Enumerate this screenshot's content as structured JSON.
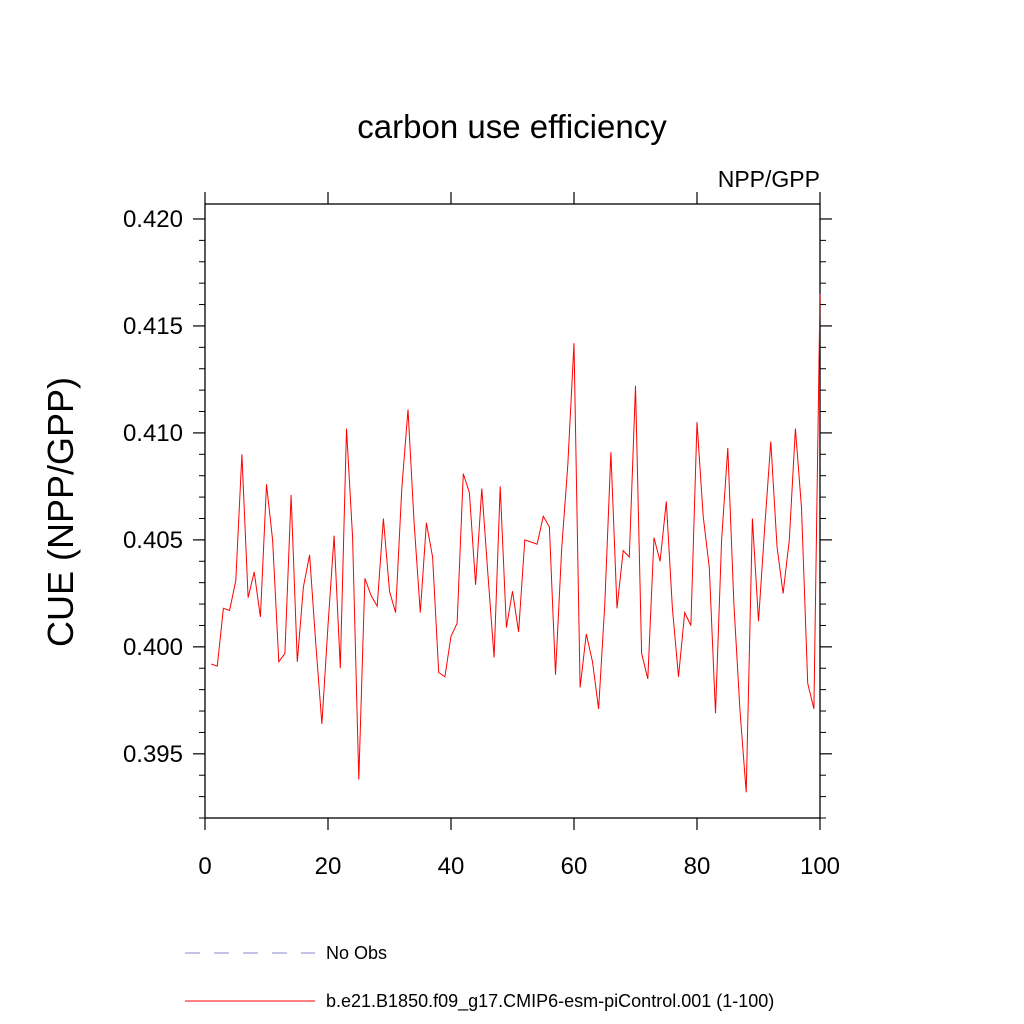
{
  "chart_data": {
    "type": "line",
    "title": "carbon use efficiency",
    "subtitle_right": "NPP/GPP",
    "xlabel": "",
    "ylabel": "CUE  (NPP/GPP)",
    "xlim": [
      0,
      100
    ],
    "ylim": [
      0.392,
      0.4207
    ],
    "xticks": [
      0,
      20,
      40,
      60,
      80,
      100
    ],
    "yticks": [
      0.395,
      0.4,
      0.405,
      0.41,
      0.415,
      0.42
    ],
    "ytick_labels": [
      "0.395",
      "0.400",
      "0.405",
      "0.410",
      "0.415",
      "0.420"
    ],
    "xtick_labels": [
      "0",
      "20",
      "40",
      "60",
      "80",
      "100"
    ],
    "grid": false,
    "legend_position": "bottom-left",
    "series": [
      {
        "name": "No Obs",
        "color": "#8a8ad6",
        "style": "dashed",
        "values": []
      },
      {
        "name": "b.e21.B1850.f09_g17.CMIP6-esm-piControl.001 (1-100)",
        "color": "#ff0000",
        "style": "solid",
        "x": [
          1,
          2,
          3,
          4,
          5,
          6,
          7,
          8,
          9,
          10,
          11,
          12,
          13,
          14,
          15,
          16,
          17,
          18,
          19,
          20,
          21,
          22,
          23,
          24,
          25,
          26,
          27,
          28,
          29,
          30,
          31,
          32,
          33,
          34,
          35,
          36,
          37,
          38,
          39,
          40,
          41,
          42,
          43,
          44,
          45,
          46,
          47,
          48,
          49,
          50,
          51,
          52,
          53,
          54,
          55,
          56,
          57,
          58,
          59,
          60,
          61,
          62,
          63,
          64,
          65,
          66,
          67,
          68,
          69,
          70,
          71,
          72,
          73,
          74,
          75,
          76,
          77,
          78,
          79,
          80,
          81,
          82,
          83,
          84,
          85,
          86,
          87,
          88,
          89,
          90,
          91,
          92,
          93,
          94,
          95,
          96,
          97,
          98,
          99,
          100
        ],
        "values": [
          0.3992,
          0.3991,
          0.4018,
          0.4017,
          0.4031,
          0.409,
          0.4023,
          0.4035,
          0.4014,
          0.4076,
          0.405,
          0.3993,
          0.3997,
          0.4071,
          0.3993,
          0.4028,
          0.4043,
          0.4002,
          0.3964,
          0.401,
          0.4052,
          0.399,
          0.4102,
          0.4051,
          0.3938,
          0.4032,
          0.4024,
          0.4019,
          0.406,
          0.4026,
          0.4016,
          0.4074,
          0.4111,
          0.4058,
          0.4016,
          0.4058,
          0.4042,
          0.3988,
          0.3986,
          0.4005,
          0.4011,
          0.4081,
          0.4072,
          0.4029,
          0.4074,
          0.4034,
          0.3995,
          0.4075,
          0.4009,
          0.4026,
          0.4007,
          0.405,
          0.4049,
          0.4048,
          0.4061,
          0.4056,
          0.3987,
          0.4046,
          0.4085,
          0.4142,
          0.3981,
          0.4006,
          0.3993,
          0.3971,
          0.402,
          0.4091,
          0.4018,
          0.4045,
          0.4042,
          0.4122,
          0.3997,
          0.3985,
          0.4051,
          0.404,
          0.4068,
          0.4018,
          0.3986,
          0.4016,
          0.401,
          0.4105,
          0.4061,
          0.4037,
          0.3969,
          0.405,
          0.4093,
          0.402,
          0.397,
          0.3932,
          0.406,
          0.4012,
          0.4055,
          0.4096,
          0.4047,
          0.4025,
          0.405,
          0.4102,
          0.4065,
          0.3983,
          0.3971,
          0.4165
        ]
      }
    ]
  }
}
